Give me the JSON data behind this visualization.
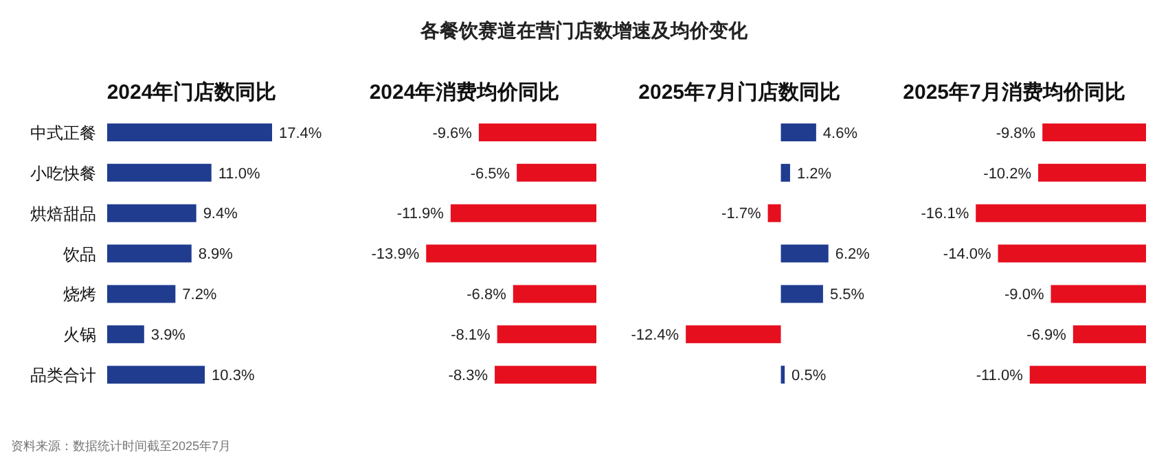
{
  "chart_data": [
    {
      "type": "bar",
      "orientation": "horizontal",
      "title": "2024年门店数同比",
      "annotations": [
        "各餐饮赛道在营门店数增速及均价变化",
        "资料来源：数据统计时间截至2025年7月"
      ],
      "categories": [
        "中式正餐",
        "小吃快餐",
        "烘焙甜品",
        "饮品",
        "烧烤",
        "火锅",
        "品类合计"
      ],
      "values": [
        17.4,
        11.0,
        9.4,
        8.9,
        7.2,
        3.9,
        10.3
      ],
      "value_labels": [
        "17.4%",
        "11.0%",
        "9.4%",
        "8.9%",
        "7.2%",
        "3.9%",
        "10.3%"
      ],
      "colors": [
        "#1f3c8f",
        "#1f3c8f",
        "#1f3c8f",
        "#1f3c8f",
        "#1f3c8f",
        "#1f3c8f",
        "#1f3c8f"
      ],
      "tick_labels": "y"
    },
    {
      "type": "bar",
      "orientation": "horizontal",
      "title": "2024年消费均价同比",
      "categories": [
        null,
        null,
        null,
        null,
        null,
        null,
        null
      ],
      "values": [
        -9.6,
        -6.5,
        -11.9,
        -13.9,
        -6.8,
        -8.1,
        -8.3
      ],
      "value_labels": [
        "-9.6%",
        "-6.5%",
        "-11.9%",
        "-13.9%",
        "-6.8%",
        "-8.1%",
        "-8.3%"
      ],
      "colors": [
        "#e60f1e",
        "#e60f1e",
        "#e60f1e",
        "#e60f1e",
        "#e60f1e",
        "#e60f1e",
        "#e60f1e"
      ],
      "tick_labels": false
    },
    {
      "type": "bar",
      "orientation": "horizontal",
      "title": "2025年7月门店数同比",
      "categories": [
        null,
        null,
        null,
        null,
        null,
        null,
        null
      ],
      "values": [
        4.6,
        1.2,
        -1.7,
        6.2,
        5.5,
        -12.4,
        0.5
      ],
      "value_labels": [
        "4.6%",
        "1.2%",
        "-1.7%",
        "6.2%",
        "5.5%",
        "-12.4%",
        "0.5%"
      ],
      "colors": [
        "#1f3c8f",
        "#1f3c8f",
        "#e60f1e",
        "#1f3c8f",
        "#1f3c8f",
        "#e60f1e",
        "#1f3c8f"
      ],
      "tick_labels": false
    },
    {
      "type": "bar",
      "orientation": "horizontal",
      "title": "2025年7月消费均价同比",
      "categories": [
        null,
        null,
        null,
        null,
        null,
        null,
        null
      ],
      "values": [
        -9.8,
        -10.2,
        -16.1,
        -14.0,
        -9.0,
        -6.9,
        -11.0
      ],
      "value_labels": [
        "-9.8%",
        "-10.2%",
        "-16.1%",
        "-14.0%",
        "-9.0%",
        "-6.9%",
        "-11.0%"
      ],
      "colors": [
        "#e60f1e",
        "#e60f1e",
        "#e60f1e",
        "#e60f1e",
        "#e60f1e",
        "#e60f1e",
        "#e60f1e"
      ],
      "tick_labels": false
    }
  ]
}
